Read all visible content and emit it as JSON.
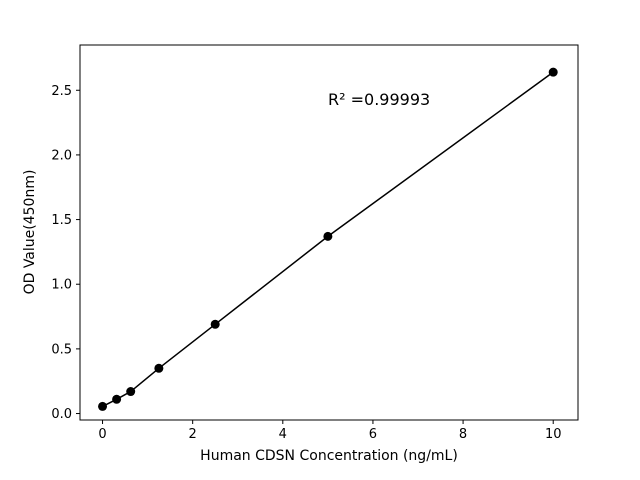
{
  "figure": {
    "background": "#ffffff"
  },
  "chart_data": {
    "type": "scatter",
    "title": "",
    "xlabel": "Human CDSN Concentration (ng/mL)",
    "ylabel": "OD Value(450nm)",
    "annotation": {
      "text": "R² =0.99993"
    },
    "x": [
      0,
      0.3125,
      0.625,
      1.25,
      2.5,
      5,
      10
    ],
    "y": [
      0.055,
      0.11,
      0.17,
      0.35,
      0.69,
      1.37,
      2.64
    ],
    "xlim": [
      -0.5,
      10.55
    ],
    "ylim": [
      -0.05,
      2.85
    ],
    "xticks": [
      0,
      2,
      4,
      6,
      8,
      10
    ],
    "xtick_labels": [
      "0",
      "2",
      "4",
      "6",
      "8",
      "10"
    ],
    "yticks": [
      0.0,
      0.5,
      1.0,
      1.5,
      2.0,
      2.5
    ],
    "ytick_labels": [
      "0.0",
      "0.5",
      "1.0",
      "1.5",
      "2.0",
      "2.5"
    ],
    "line_color": "#000000",
    "marker_color": "#000000",
    "marker_radius": 4.5,
    "grid": false
  }
}
